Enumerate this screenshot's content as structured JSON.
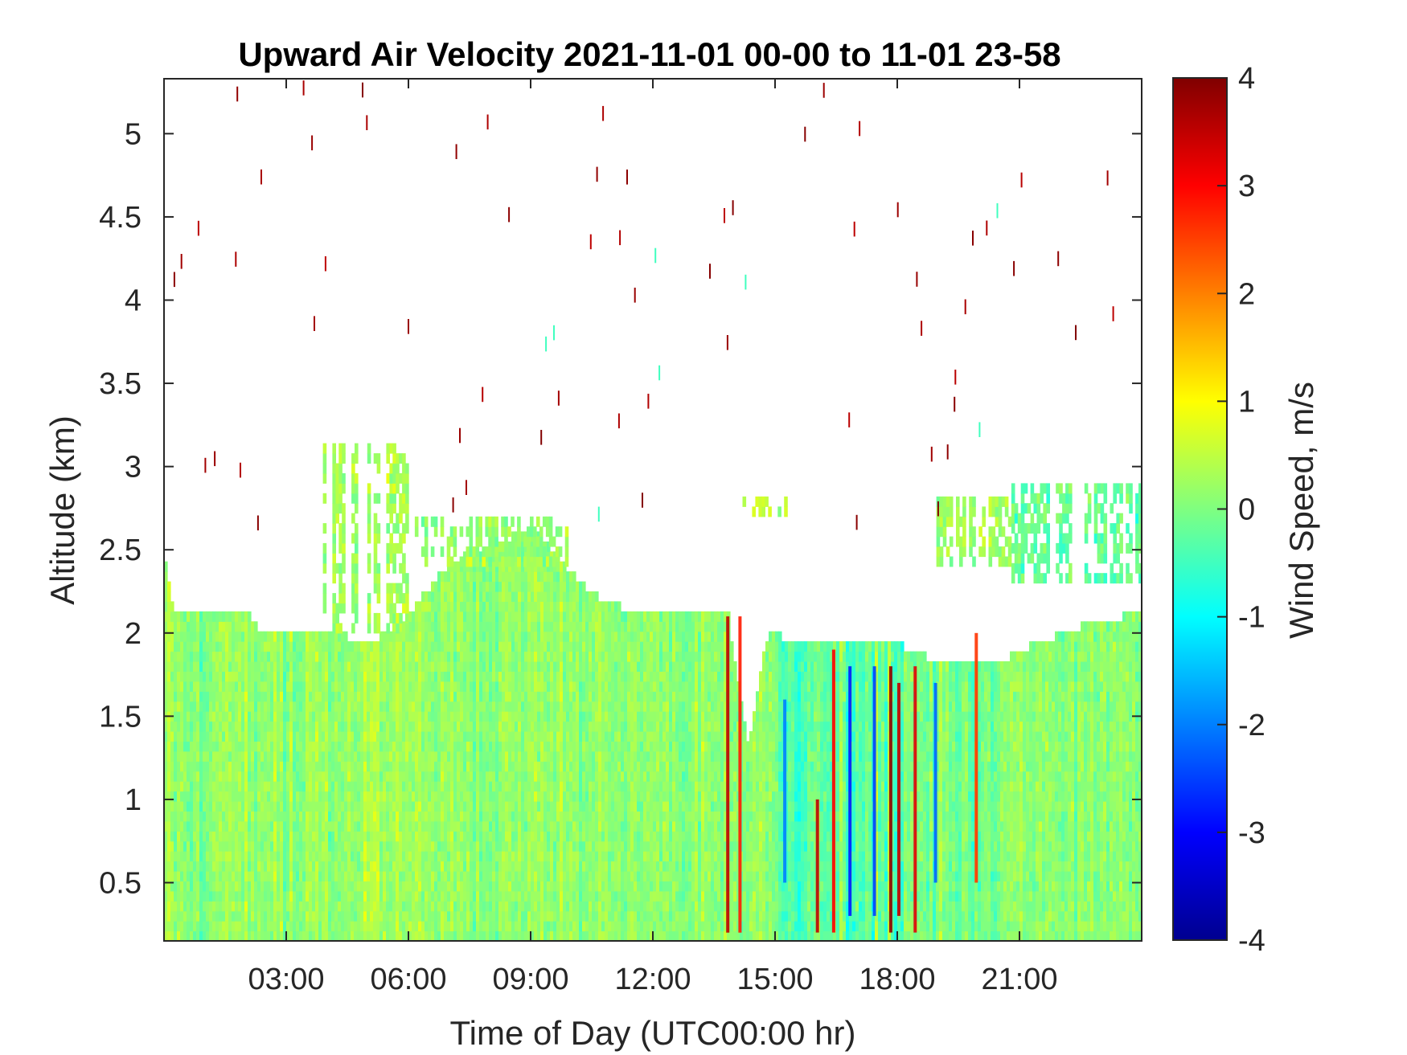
{
  "chart_data": {
    "type": "heatmap",
    "title": "Upward Air Velocity 2021-11-01 00-00 to 11-01 23-58",
    "xlabel": "Time of Day (UTC00:00 hr)",
    "ylabel": "Altitude (km)",
    "x_ticks": [
      {
        "value": 3,
        "label": "03:00"
      },
      {
        "value": 6,
        "label": "06:00"
      },
      {
        "value": 9,
        "label": "09:00"
      },
      {
        "value": 12,
        "label": "12:00"
      },
      {
        "value": 15,
        "label": "15:00"
      },
      {
        "value": 18,
        "label": "18:00"
      },
      {
        "value": 21,
        "label": "21:00"
      }
    ],
    "y_ticks": [
      {
        "value": 0.5,
        "label": "0.5"
      },
      {
        "value": 1,
        "label": "1"
      },
      {
        "value": 1.5,
        "label": "1.5"
      },
      {
        "value": 2,
        "label": "2"
      },
      {
        "value": 2.5,
        "label": "2.5"
      },
      {
        "value": 3,
        "label": "3"
      },
      {
        "value": 3.5,
        "label": "3.5"
      },
      {
        "value": 4,
        "label": "4"
      },
      {
        "value": 4.5,
        "label": "4.5"
      },
      {
        "value": 5,
        "label": "5"
      }
    ],
    "xlim": [
      0,
      24
    ],
    "ylim": [
      0.15,
      5.33
    ],
    "colorbar": {
      "label": "Wind Speed, m/s",
      "range": [
        -4,
        4
      ],
      "colormap": "jet",
      "ticks": [
        {
          "value": 4,
          "label": "4"
        },
        {
          "value": 3,
          "label": "3"
        },
        {
          "value": 2,
          "label": "2"
        },
        {
          "value": 1,
          "label": "1"
        },
        {
          "value": 0,
          "label": "0"
        },
        {
          "value": -1,
          "label": "-1"
        },
        {
          "value": -2,
          "label": "-2"
        },
        {
          "value": -3,
          "label": "-3"
        },
        {
          "value": -4,
          "label": "-4"
        }
      ]
    },
    "data_top_altitude_km": [
      {
        "time": 0.0,
        "top": 2.4
      },
      {
        "time": 0.2,
        "top": 2.1
      },
      {
        "time": 2.0,
        "top": 2.1
      },
      {
        "time": 2.3,
        "top": 2.0
      },
      {
        "time": 4.0,
        "top": 2.0
      },
      {
        "time": 5.0,
        "top": 1.9
      },
      {
        "time": 6.0,
        "top": 2.1
      },
      {
        "time": 7.0,
        "top": 2.4
      },
      {
        "time": 9.0,
        "top": 2.6
      },
      {
        "time": 10.5,
        "top": 2.2
      },
      {
        "time": 11.5,
        "top": 2.1
      },
      {
        "time": 12.5,
        "top": 2.1
      },
      {
        "time": 13.8,
        "top": 2.1
      },
      {
        "time": 14.3,
        "top": 1.3
      },
      {
        "time": 14.8,
        "top": 2.0
      },
      {
        "time": 15.5,
        "top": 1.9
      },
      {
        "time": 18.0,
        "top": 1.9
      },
      {
        "time": 19.0,
        "top": 1.8
      },
      {
        "time": 20.5,
        "top": 1.8
      },
      {
        "time": 21.3,
        "top": 1.9
      },
      {
        "time": 22.3,
        "top": 2.0
      },
      {
        "time": 24.0,
        "top": 2.1
      }
    ],
    "elevated_layers": [
      {
        "start": 3.9,
        "end": 6.0,
        "bottom": 2.0,
        "top": 3.1,
        "velocity": 0.3
      },
      {
        "start": 6.0,
        "end": 10.0,
        "bottom": 2.4,
        "top": 2.7,
        "velocity": 0.2
      },
      {
        "start": 14.2,
        "end": 15.3,
        "bottom": 2.7,
        "top": 2.8,
        "velocity": 0.5
      },
      {
        "start": 18.8,
        "end": 20.8,
        "bottom": 2.4,
        "top": 2.8,
        "velocity": 0.3
      },
      {
        "start": 20.8,
        "end": 24.0,
        "bottom": 2.3,
        "top": 2.9,
        "velocity": -0.2
      }
    ],
    "strong_features": [
      {
        "time": 13.8,
        "bottom": 0.2,
        "top": 2.1,
        "velocity": 3.5
      },
      {
        "time": 14.1,
        "bottom": 0.2,
        "top": 2.1,
        "velocity": 2.8
      },
      {
        "time": 16.0,
        "bottom": 0.2,
        "top": 1.0,
        "velocity": 3.5
      },
      {
        "time": 16.4,
        "bottom": 0.2,
        "top": 1.9,
        "velocity": 3.0
      },
      {
        "time": 17.8,
        "bottom": 0.2,
        "top": 1.8,
        "velocity": 3.9
      },
      {
        "time": 18.0,
        "bottom": 0.3,
        "top": 1.7,
        "velocity": 3.5
      },
      {
        "time": 18.4,
        "bottom": 0.2,
        "top": 1.8,
        "velocity": 3.2
      },
      {
        "time": 19.9,
        "bottom": 0.5,
        "top": 2.0,
        "velocity": 2.6
      },
      {
        "time": 16.8,
        "bottom": 0.3,
        "top": 1.8,
        "velocity": -2.8
      },
      {
        "time": 17.4,
        "bottom": 0.3,
        "top": 1.8,
        "velocity": -2.5
      },
      {
        "time": 18.9,
        "bottom": 0.5,
        "top": 1.7,
        "velocity": -2.2
      },
      {
        "time": 15.2,
        "bottom": 0.5,
        "top": 1.6,
        "velocity": -2.0
      }
    ]
  }
}
